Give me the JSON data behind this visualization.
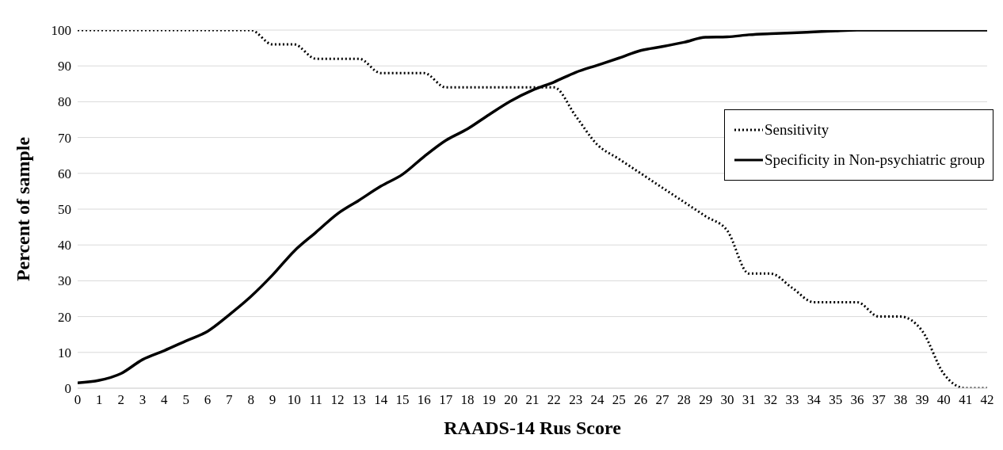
{
  "chart_data": {
    "type": "line",
    "xlabel": "RAADS-14 Rus Score",
    "ylabel": "Percent of sample",
    "x": [
      0,
      1,
      2,
      3,
      4,
      5,
      6,
      7,
      8,
      9,
      10,
      11,
      12,
      13,
      14,
      15,
      16,
      17,
      18,
      19,
      20,
      21,
      22,
      23,
      24,
      25,
      26,
      27,
      28,
      29,
      30,
      31,
      32,
      33,
      34,
      35,
      36,
      37,
      38,
      39,
      40,
      41,
      42
    ],
    "xlim": [
      0,
      42
    ],
    "xticks": [
      0,
      1,
      2,
      3,
      4,
      5,
      6,
      7,
      8,
      9,
      10,
      11,
      12,
      13,
      14,
      15,
      16,
      17,
      18,
      19,
      20,
      21,
      22,
      23,
      24,
      25,
      26,
      27,
      28,
      29,
      30,
      31,
      32,
      33,
      34,
      35,
      36,
      37,
      38,
      39,
      40,
      41,
      42
    ],
    "ylim": [
      0,
      100
    ],
    "yticks": [
      0,
      10,
      20,
      30,
      40,
      50,
      60,
      70,
      80,
      90,
      100
    ],
    "grid": "y",
    "legend": "right",
    "marker": "none",
    "series": [
      {
        "name": "Sensitivity",
        "color": "#000000",
        "line_style": "dotted",
        "values": [
          100,
          100,
          100,
          100,
          100,
          100,
          100,
          100,
          100,
          96,
          96,
          92,
          92,
          92,
          88,
          88,
          88,
          84,
          84,
          84,
          84,
          84,
          84,
          76,
          68,
          64,
          60,
          56,
          52,
          48,
          44,
          32,
          32,
          28,
          24,
          24,
          24,
          20,
          20,
          16,
          4,
          0,
          0
        ]
      },
      {
        "name": "Specificity in Non-psychiatric group",
        "color": "#000000",
        "line_style": "solid",
        "values": [
          1.5,
          2.2,
          4.1,
          8,
          10.5,
          13.2,
          15.9,
          20.5,
          25.6,
          31.6,
          38.3,
          43.5,
          48.7,
          52.5,
          56.4,
          59.7,
          64.7,
          69.2,
          72.4,
          76.4,
          80.2,
          83.2,
          85.5,
          88.2,
          90.2,
          92.2,
          94.3,
          95.4,
          96.6,
          98,
          98.1,
          98.7,
          99,
          99.2,
          99.5,
          99.8,
          100,
          100,
          100,
          100,
          100,
          100,
          100
        ]
      }
    ]
  }
}
